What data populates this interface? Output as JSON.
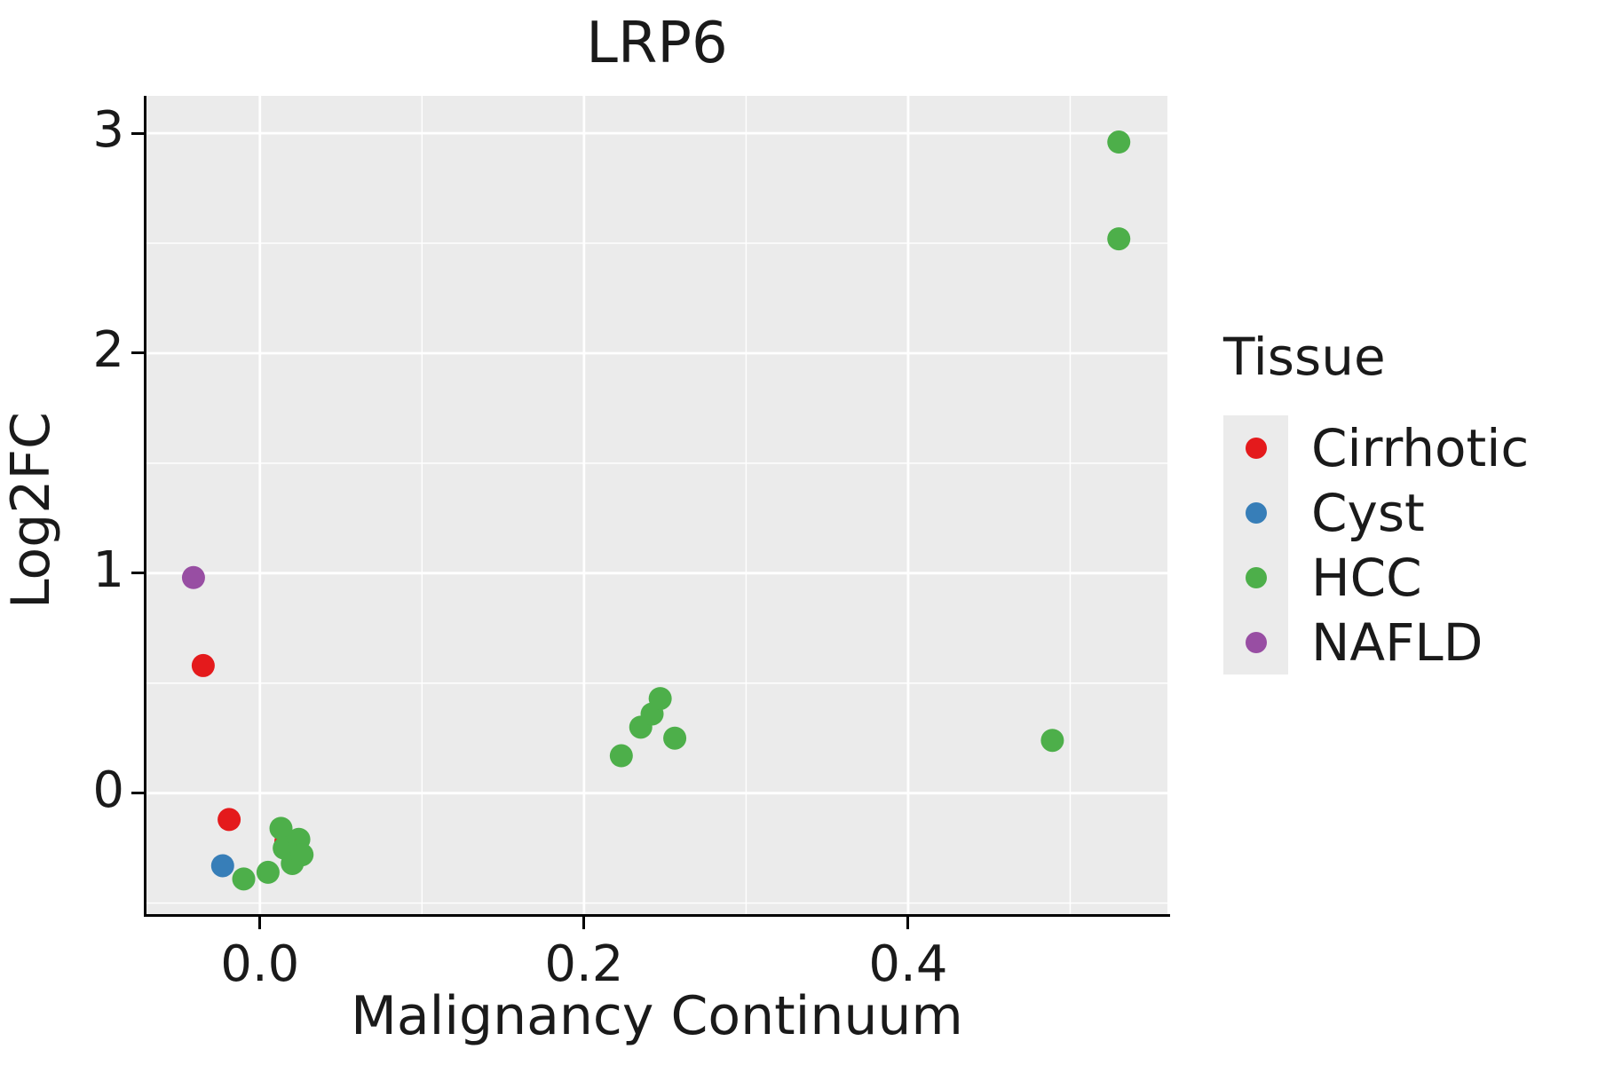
{
  "chart_data": {
    "type": "scatter",
    "title": "LRP6",
    "xlabel": "Malignancy Continuum",
    "ylabel": "Log2FC",
    "xlim": [
      -0.07,
      0.56
    ],
    "ylim": [
      -0.55,
      3.17
    ],
    "x_ticks": {
      "values": [
        0.0,
        0.2,
        0.4
      ],
      "labels": [
        "0.0",
        "0.2",
        "0.4"
      ]
    },
    "x_minor_ticks": [
      0.1,
      0.3,
      0.5
    ],
    "y_ticks": {
      "values": [
        0,
        1,
        2,
        3
      ],
      "labels": [
        "0",
        "1",
        "2",
        "3"
      ]
    },
    "y_minor_ticks": [
      -0.5,
      0.5,
      1.5,
      2.5
    ],
    "grid": "white major and minor gridlines on gray panel",
    "legend_position": "right",
    "legend_title": "Tissue",
    "colors": {
      "panel_background": "#EBEBEB",
      "gridline": "#FFFFFF",
      "axis": "#000000"
    },
    "series": [
      {
        "name": "Cirrhotic",
        "color": "#E41A1C",
        "points": [
          [
            -0.035,
            0.58
          ],
          [
            -0.019,
            -0.12
          ],
          [
            0.016,
            -0.22
          ]
        ]
      },
      {
        "name": "Cyst",
        "color": "#377EB8",
        "points": [
          [
            -0.023,
            -0.33
          ]
        ]
      },
      {
        "name": "HCC",
        "color": "#4DAF4A",
        "points": [
          [
            -0.01,
            -0.39
          ],
          [
            0.005,
            -0.36
          ],
          [
            0.013,
            -0.16
          ],
          [
            0.015,
            -0.25
          ],
          [
            0.02,
            -0.32
          ],
          [
            0.024,
            -0.21
          ],
          [
            0.026,
            -0.28
          ],
          [
            0.223,
            0.17
          ],
          [
            0.235,
            0.3
          ],
          [
            0.242,
            0.36
          ],
          [
            0.247,
            0.43
          ],
          [
            0.256,
            0.25
          ],
          [
            0.489,
            0.24
          ],
          [
            0.53,
            2.96
          ],
          [
            0.53,
            2.52
          ]
        ]
      },
      {
        "name": "NAFLD",
        "color": "#984EA3",
        "points": [
          [
            -0.041,
            0.98
          ]
        ]
      }
    ],
    "point_radius_px": 13
  }
}
